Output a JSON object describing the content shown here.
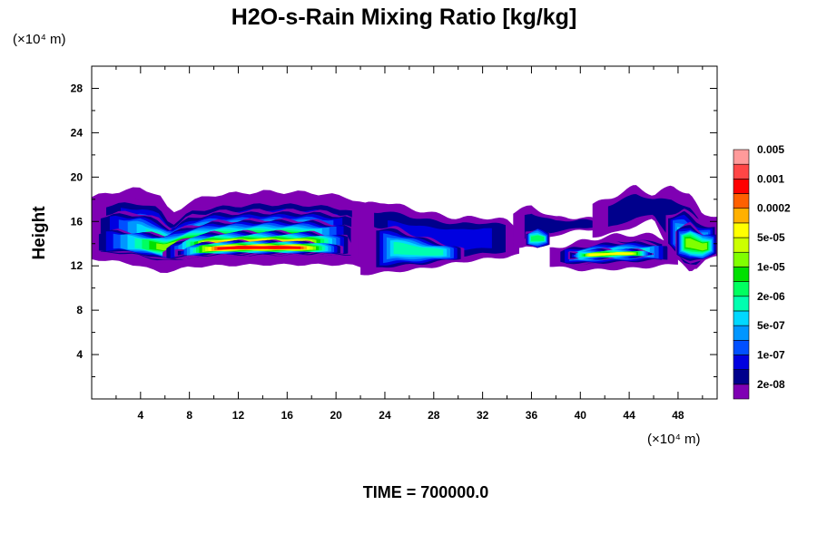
{
  "chart_data": {
    "type": "heatmap",
    "title": "H2O-s-Rain Mixing Ratio [kg/kg]",
    "ylabel": "Height",
    "y_unit_label": "(×10⁴ m)",
    "x_unit_label": "(×10⁴ m)",
    "footer": "TIME = 700000.0",
    "xlim": [
      0,
      51.2
    ],
    "ylim": [
      0,
      30
    ],
    "x_ticks": [
      4,
      8,
      12,
      16,
      20,
      24,
      28,
      32,
      36,
      40,
      44,
      48
    ],
    "x_tick_labels": [
      "4",
      "8",
      "12",
      "16",
      "20",
      "24",
      "28",
      "32",
      "36",
      "40",
      "44",
      "48"
    ],
    "y_ticks": [
      4,
      8,
      12,
      16,
      20,
      24,
      28
    ],
    "y_tick_labels": [
      "4",
      "8",
      "12",
      "16",
      "20",
      "24",
      "28"
    ],
    "colorbar": {
      "colors": [
        "#7f00b3",
        "#00008c",
        "#0000e0",
        "#0050ff",
        "#0096ff",
        "#00d8ff",
        "#00ffb0",
        "#00ff60",
        "#00e000",
        "#80ff00",
        "#ccff00",
        "#ffff00",
        "#ffb000",
        "#ff6000",
        "#ff0000",
        "#ff4646",
        "#ff9a9a"
      ],
      "labels": [
        "2e-08",
        "1e-07",
        "5e-07",
        "2e-06",
        "1e-05",
        "5e-05",
        "0.0002",
        "0.001",
        "0.005"
      ]
    },
    "bands": [
      {
        "x0": 0.0,
        "x1": 22.5,
        "level": 1,
        "points": [
          [
            0,
            12.6,
            18.2
          ],
          [
            2,
            12.4,
            18.7
          ],
          [
            4,
            12.0,
            19.0
          ],
          [
            5.5,
            11.4,
            18.5
          ],
          [
            6.5,
            11.5,
            16.6
          ],
          [
            8,
            11.9,
            17.8
          ],
          [
            10,
            12.0,
            18.4
          ],
          [
            14,
            12.1,
            18.7
          ],
          [
            18,
            12.1,
            18.6
          ],
          [
            21,
            12.1,
            18.2
          ],
          [
            22.5,
            11.8,
            17.5
          ]
        ]
      },
      {
        "x0": 0.0,
        "x1": 22.5,
        "level": 4,
        "points": [
          [
            0,
            12.8,
            17.6
          ],
          [
            2,
            12.7,
            18.0
          ],
          [
            4,
            12.3,
            18.1
          ],
          [
            5.5,
            12.0,
            17.6
          ],
          [
            6.5,
            12.0,
            16.0
          ],
          [
            8,
            12.2,
            17.2
          ],
          [
            10,
            12.3,
            17.7
          ],
          [
            14,
            12.3,
            18.0
          ],
          [
            18,
            12.4,
            17.9
          ],
          [
            21,
            12.4,
            17.5
          ],
          [
            22.5,
            12.2,
            16.5
          ]
        ]
      },
      {
        "x0": 0.0,
        "x1": 22.0,
        "level": 7,
        "points": [
          [
            0,
            13.0,
            16.5
          ],
          [
            2,
            13.0,
            16.8
          ],
          [
            4,
            12.7,
            16.8
          ],
          [
            5.5,
            12.3,
            16.2
          ],
          [
            6.5,
            12.3,
            15.4
          ],
          [
            8,
            12.5,
            16.5
          ],
          [
            10,
            12.6,
            16.9
          ],
          [
            14,
            12.6,
            17.0
          ],
          [
            18,
            12.7,
            17.0
          ],
          [
            21,
            12.7,
            16.6
          ],
          [
            22,
            12.6,
            15.6
          ]
        ]
      },
      {
        "x0": 0.0,
        "x1": 21.8,
        "level": 9,
        "points": [
          [
            0,
            13.2,
            15.0
          ],
          [
            2,
            13.3,
            15.2
          ],
          [
            4,
            13.0,
            15.0
          ],
          [
            6,
            12.5,
            14.8
          ],
          [
            8,
            12.7,
            15.6
          ],
          [
            10,
            12.8,
            16.0
          ],
          [
            14,
            12.8,
            16.2
          ],
          [
            18,
            12.9,
            16.1
          ],
          [
            21,
            12.9,
            15.6
          ],
          [
            21.8,
            12.8,
            14.8
          ]
        ]
      },
      {
        "x0": 5.8,
        "x1": 21.3,
        "level": 12,
        "points": [
          [
            5.8,
            12.7,
            13.4
          ],
          [
            8,
            12.8,
            14.6
          ],
          [
            10,
            12.9,
            15.0
          ],
          [
            14,
            13.0,
            15.1
          ],
          [
            18,
            13.0,
            15.0
          ],
          [
            21,
            13.1,
            14.6
          ],
          [
            21.3,
            13.0,
            13.8
          ]
        ]
      },
      {
        "x0": 6.8,
        "x1": 20.6,
        "level": 14,
        "points": [
          [
            6.8,
            12.9,
            13.3
          ],
          [
            9,
            13.0,
            14.0
          ],
          [
            12,
            13.1,
            14.2
          ],
          [
            16,
            13.1,
            14.2
          ],
          [
            19,
            13.2,
            14.0
          ],
          [
            20.6,
            13.2,
            13.6
          ]
        ]
      },
      {
        "x0": 22.0,
        "x1": 35.0,
        "level": 2,
        "points": [
          [
            22,
            11.2,
            17.5
          ],
          [
            24,
            11.4,
            17.8
          ],
          [
            26,
            11.6,
            17.2
          ],
          [
            28,
            11.9,
            16.7
          ],
          [
            30,
            12.3,
            16.3
          ],
          [
            32,
            12.6,
            16.4
          ],
          [
            34,
            12.8,
            16.1
          ],
          [
            35,
            13.0,
            15.4
          ]
        ]
      },
      {
        "x0": 23.0,
        "x1": 30.5,
        "level": 6,
        "points": [
          [
            23,
            11.5,
            15.6
          ],
          [
            25,
            11.8,
            15.4
          ],
          [
            27,
            12.0,
            14.6
          ],
          [
            29,
            12.4,
            14.0
          ],
          [
            30.5,
            12.7,
            13.4
          ]
        ]
      },
      {
        "x0": 34.5,
        "x1": 42.0,
        "level": 1,
        "points": [
          [
            34.5,
            13.5,
            16.8
          ],
          [
            36,
            14.0,
            17.4
          ],
          [
            38,
            14.8,
            16.3
          ],
          [
            40,
            15.2,
            16.4
          ],
          [
            42,
            15.4,
            16.0
          ]
        ]
      },
      {
        "x0": 35.5,
        "x1": 37.5,
        "level": 7,
        "points": [
          [
            35.5,
            13.8,
            15.0
          ],
          [
            36.5,
            13.5,
            15.5
          ],
          [
            37.5,
            14.0,
            14.8
          ]
        ]
      },
      {
        "x0": 37.5,
        "x1": 48.0,
        "level": 1,
        "points": [
          [
            37.5,
            12.0,
            13.5
          ],
          [
            40,
            11.6,
            14.2
          ],
          [
            43,
            11.7,
            14.8
          ],
          [
            46,
            11.9,
            14.8
          ],
          [
            48,
            12.2,
            14.0
          ]
        ]
      },
      {
        "x0": 38.0,
        "x1": 47.5,
        "level": 6,
        "points": [
          [
            38,
            12.3,
            13.3
          ],
          [
            40,
            12.1,
            13.8
          ],
          [
            43,
            12.2,
            14.2
          ],
          [
            46,
            12.4,
            14.1
          ],
          [
            47.5,
            12.6,
            13.6
          ]
        ]
      },
      {
        "x0": 39.0,
        "x1": 46.0,
        "level": 11,
        "points": [
          [
            39,
            12.7,
            13.1
          ],
          [
            41,
            12.6,
            13.4
          ],
          [
            43,
            12.7,
            13.5
          ],
          [
            46,
            12.9,
            13.3
          ]
        ]
      },
      {
        "x0": 41.0,
        "x1": 51.2,
        "level": 1,
        "points": [
          [
            41,
            14.6,
            17.5
          ],
          [
            43,
            15.0,
            18.4
          ],
          [
            44.5,
            15.6,
            19.2
          ],
          [
            46,
            16.2,
            18.4
          ],
          [
            47.5,
            13.0,
            19.2
          ],
          [
            49,
            11.4,
            18.5
          ],
          [
            50,
            12.5,
            16.5
          ],
          [
            51.2,
            12.8,
            16.6
          ]
        ]
      },
      {
        "x0": 47.0,
        "x1": 51.2,
        "level": 5,
        "points": [
          [
            47,
            14.0,
            16.5
          ],
          [
            48.5,
            12.0,
            17.2
          ],
          [
            49.5,
            11.8,
            16.2
          ],
          [
            50.5,
            12.7,
            15.8
          ],
          [
            51.2,
            13.0,
            15.6
          ]
        ]
      },
      {
        "x0": 47.8,
        "x1": 51.2,
        "level": 9,
        "points": [
          [
            47.8,
            13.0,
            15.2
          ],
          [
            49,
            12.3,
            15.8
          ],
          [
            50,
            12.4,
            15.0
          ],
          [
            51.2,
            13.2,
            14.7
          ]
        ]
      }
    ]
  }
}
